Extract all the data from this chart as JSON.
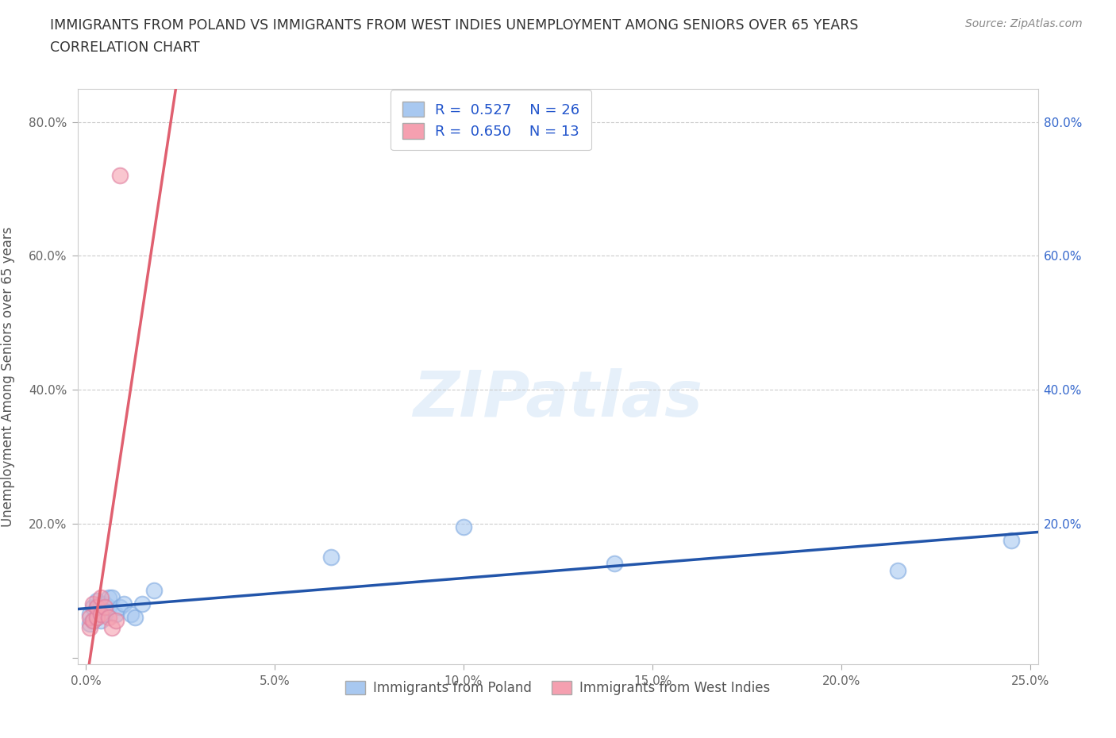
{
  "title_line1": "IMMIGRANTS FROM POLAND VS IMMIGRANTS FROM WEST INDIES UNEMPLOYMENT AMONG SENIORS OVER 65 YEARS",
  "title_line2": "CORRELATION CHART",
  "source": "Source: ZipAtlas.com",
  "ylabel": "Unemployment Among Seniors over 65 years",
  "watermark": "ZIPatlas",
  "xlim": [
    -0.002,
    0.252
  ],
  "ylim": [
    -0.01,
    0.85
  ],
  "xticks": [
    0.0,
    0.05,
    0.1,
    0.15,
    0.2,
    0.25
  ],
  "yticks": [
    0.0,
    0.2,
    0.4,
    0.6,
    0.8
  ],
  "poland_R": 0.527,
  "poland_N": 26,
  "wi_R": 0.65,
  "wi_N": 13,
  "poland_color": "#a8c8f0",
  "poland_edge_color": "#80aae0",
  "wi_color": "#f5a0b0",
  "wi_edge_color": "#e080a0",
  "poland_line_color": "#2255aa",
  "wi_line_color": "#e06070",
  "wi_dash_color": "#e0b0c0",
  "legend_color": "#2255cc",
  "poland_x": [
    0.001,
    0.001,
    0.002,
    0.002,
    0.003,
    0.003,
    0.003,
    0.004,
    0.004,
    0.005,
    0.005,
    0.006,
    0.006,
    0.007,
    0.008,
    0.009,
    0.01,
    0.012,
    0.013,
    0.015,
    0.018,
    0.065,
    0.1,
    0.14,
    0.215,
    0.245
  ],
  "poland_y": [
    0.05,
    0.065,
    0.055,
    0.075,
    0.06,
    0.075,
    0.085,
    0.055,
    0.08,
    0.065,
    0.08,
    0.075,
    0.09,
    0.09,
    0.065,
    0.075,
    0.08,
    0.065,
    0.06,
    0.08,
    0.1,
    0.15,
    0.195,
    0.14,
    0.13,
    0.175
  ],
  "wi_x": [
    0.001,
    0.001,
    0.002,
    0.002,
    0.003,
    0.003,
    0.004,
    0.004,
    0.005,
    0.006,
    0.007,
    0.008,
    0.009
  ],
  "wi_y": [
    0.045,
    0.06,
    0.055,
    0.08,
    0.06,
    0.075,
    0.065,
    0.09,
    0.075,
    0.06,
    0.045,
    0.055,
    0.72
  ]
}
